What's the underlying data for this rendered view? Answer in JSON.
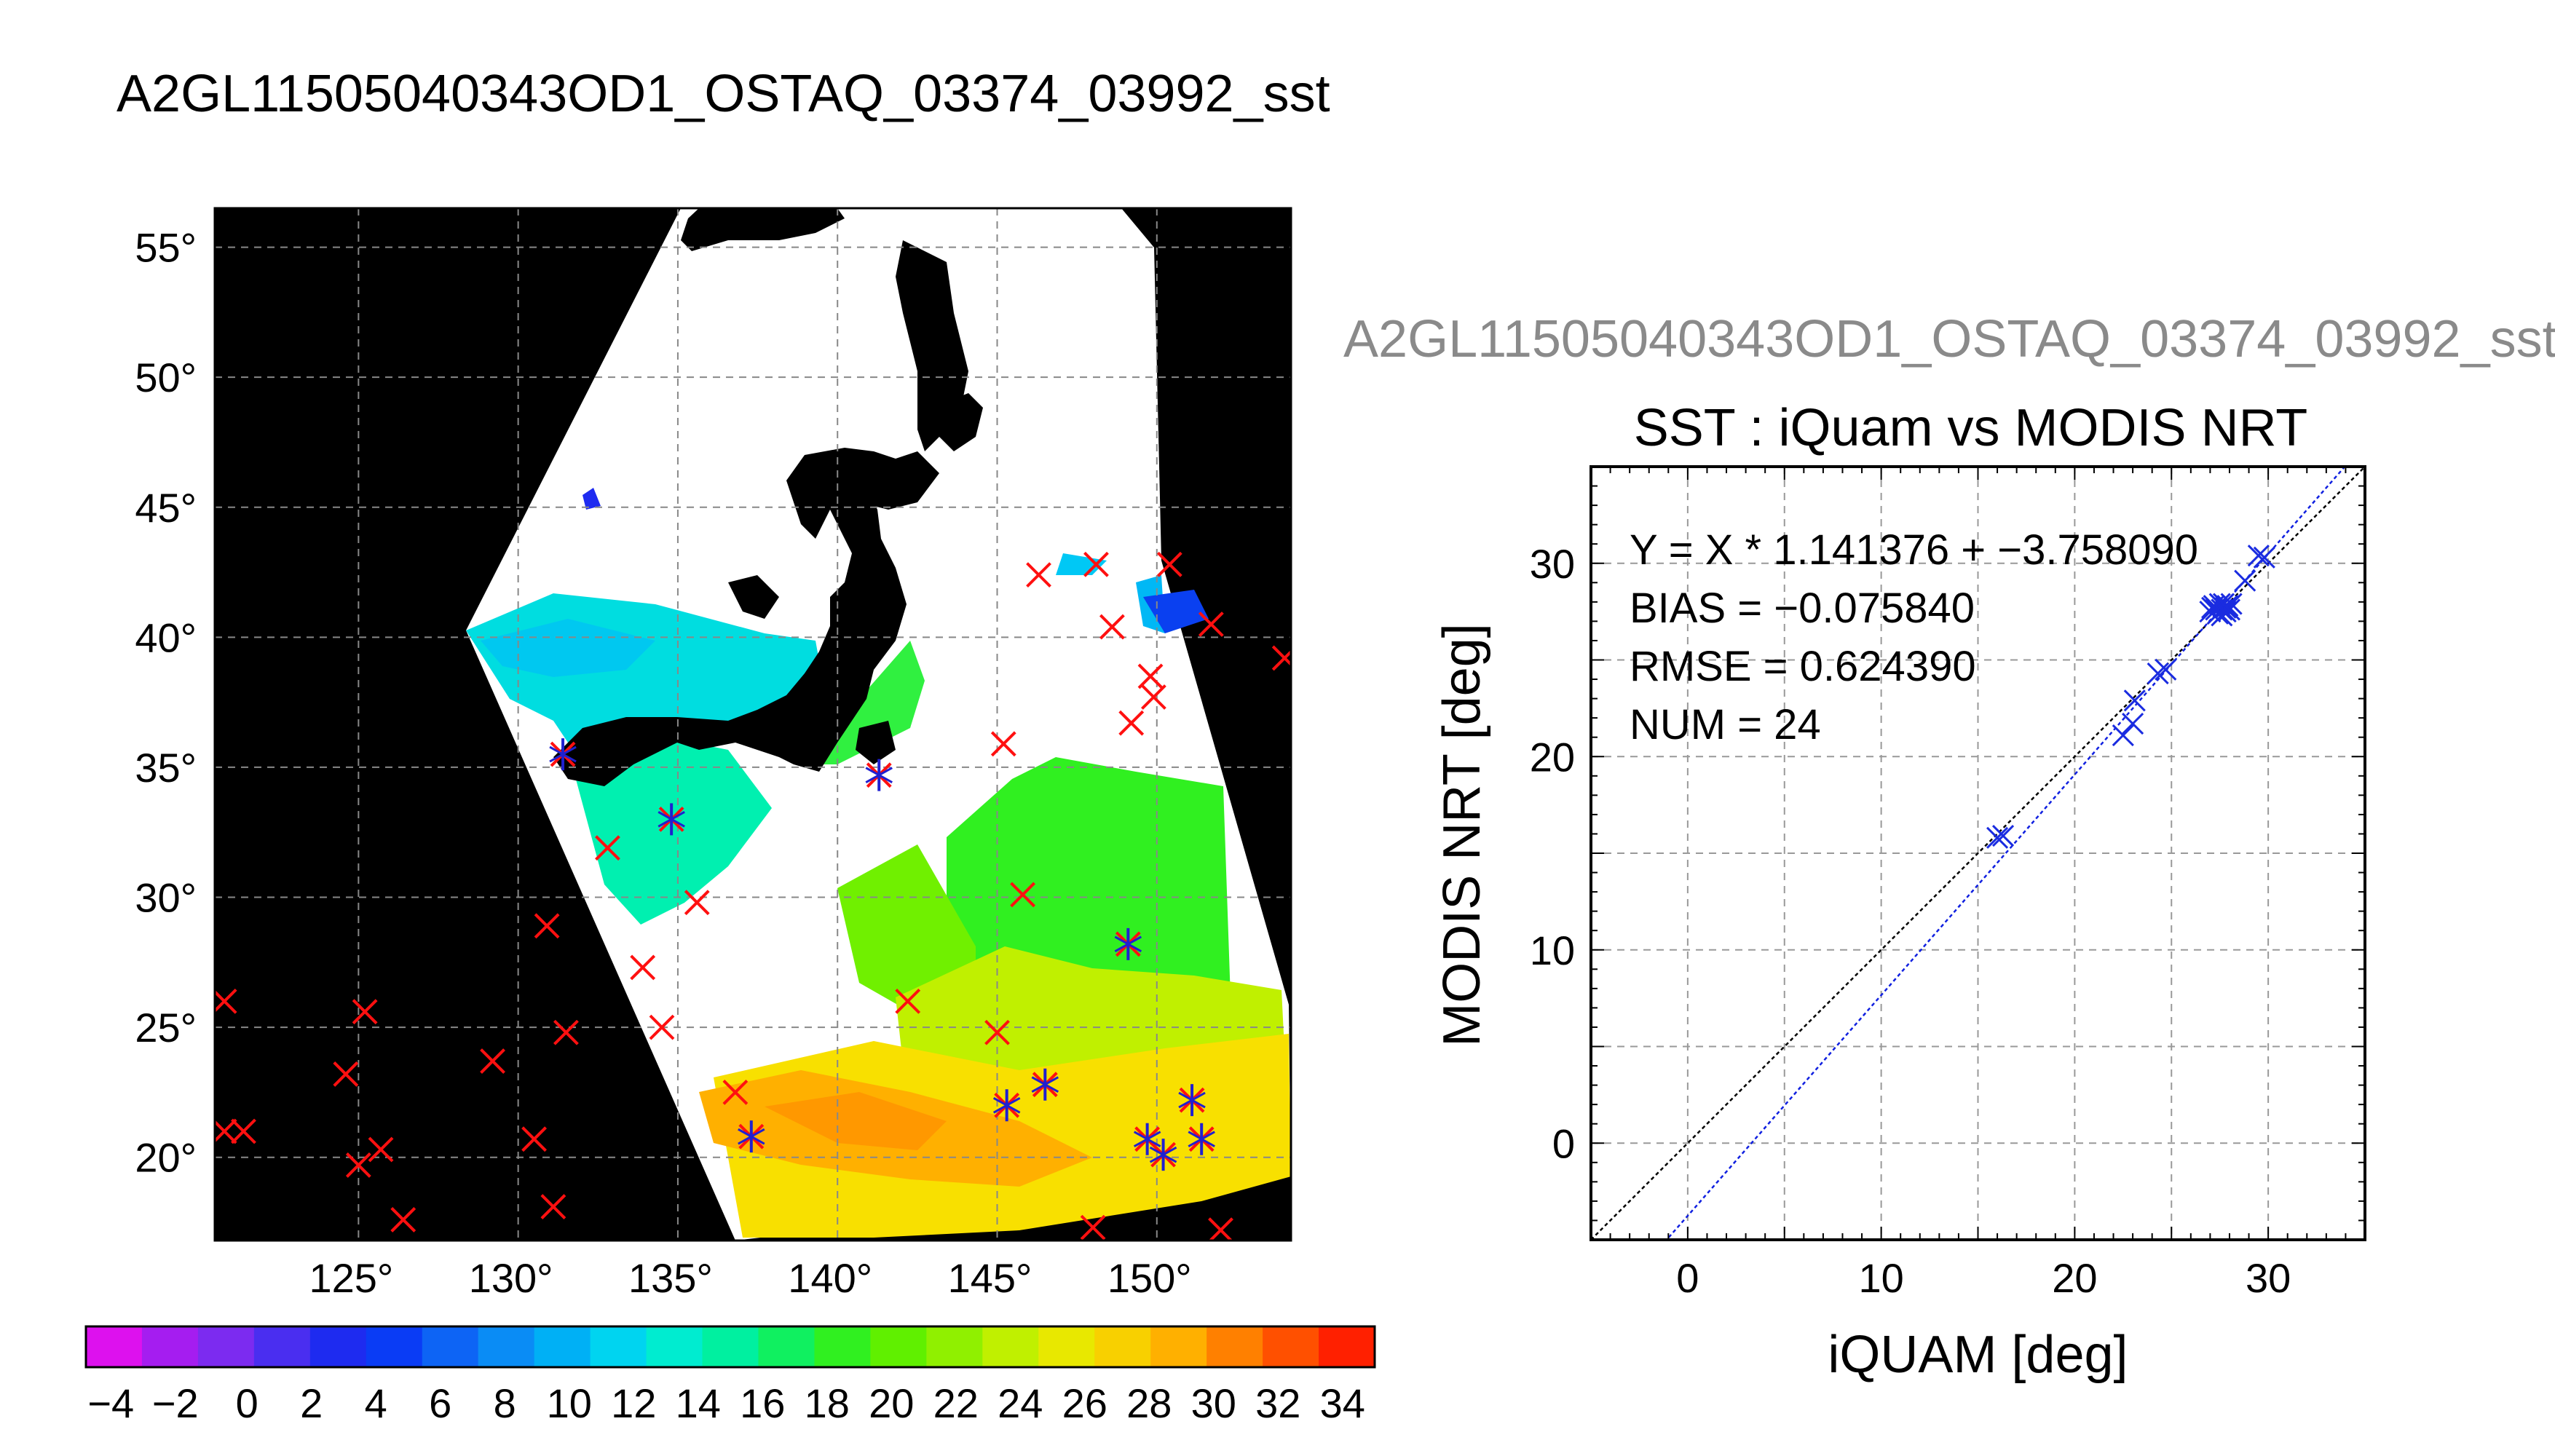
{
  "header": {
    "title": "A2GL11505040343OD1_OSTAQ_03374_03992_sst",
    "subtitle": "A2GL11505040343OD1_OSTAQ_03374_03992_sst"
  },
  "chart_data": [
    {
      "type": "map",
      "title": "",
      "lon_range": [
        120.5,
        154.2
      ],
      "lat_range": [
        16.8,
        56.5
      ],
      "lon_ticks": [
        "125°",
        "130°",
        "135°",
        "140°",
        "145°",
        "150°"
      ],
      "lon_tick_values": [
        125,
        130,
        135,
        140,
        145,
        150
      ],
      "lat_ticks": [
        "55°",
        "50°",
        "45°",
        "40°",
        "35°",
        "30°",
        "25°",
        "20°"
      ],
      "lat_tick_values": [
        55,
        50,
        45,
        40,
        35,
        30,
        25,
        20
      ],
      "grid": true,
      "markers_red": [
        [
          120.8,
          26
        ],
        [
          125.2,
          25.6
        ],
        [
          124.6,
          23.2
        ],
        [
          120.8,
          21
        ],
        [
          121.4,
          21
        ],
        [
          125,
          19.7
        ],
        [
          125.7,
          20.3
        ],
        [
          126.4,
          17.6
        ],
        [
          129.2,
          23.7
        ],
        [
          130.5,
          20.7
        ],
        [
          131.1,
          18.1
        ],
        [
          131.5,
          24.8
        ],
        [
          130.9,
          28.9
        ],
        [
          132.8,
          31.9
        ],
        [
          134.5,
          25
        ],
        [
          133.9,
          27.3
        ],
        [
          135.6,
          29.8
        ],
        [
          134.8,
          33
        ],
        [
          131.4,
          35.5
        ],
        [
          136.8,
          22.5
        ],
        [
          137.3,
          20.8
        ],
        [
          142.2,
          26
        ],
        [
          141.3,
          34.7
        ],
        [
          145.2,
          35.9
        ],
        [
          145.8,
          30.1
        ],
        [
          146.5,
          22.8
        ],
        [
          145,
          24.8
        ],
        [
          145.3,
          22
        ],
        [
          146.3,
          42.4
        ],
        [
          148.1,
          42.8
        ],
        [
          148.6,
          40.4
        ],
        [
          149.2,
          36.7
        ],
        [
          149.8,
          38.5
        ],
        [
          149.9,
          37.7
        ],
        [
          150.4,
          42.8
        ],
        [
          151.7,
          40.5
        ],
        [
          154,
          39.2
        ],
        [
          149.1,
          28.2
        ],
        [
          151.1,
          22.2
        ],
        [
          151.4,
          20.7
        ],
        [
          149.7,
          20.7
        ],
        [
          150.2,
          20.1
        ],
        [
          148,
          17.3
        ],
        [
          152,
          17.2
        ]
      ],
      "markers_blue": [
        [
          131.4,
          35.5
        ],
        [
          134.8,
          33
        ],
        [
          137.3,
          20.8
        ],
        [
          141.3,
          34.7
        ],
        [
          146.5,
          22.8
        ],
        [
          145.3,
          22
        ],
        [
          149.1,
          28.2
        ],
        [
          149.7,
          20.7
        ],
        [
          150.2,
          20.1
        ],
        [
          151.1,
          22.2
        ],
        [
          151.4,
          20.7
        ]
      ],
      "colorbar": {
        "ticks": [
          "−4",
          "−2",
          "0",
          "2",
          "4",
          "6",
          "8",
          "10",
          "12",
          "14",
          "16",
          "18",
          "20",
          "22",
          "24",
          "26",
          "28",
          "30",
          "32",
          "34"
        ],
        "range": [
          -5,
          35
        ],
        "colors": [
          "#dd11ee",
          "#a51df0",
          "#7c2bf0",
          "#4a2ef0",
          "#1e2bf0",
          "#0a3cf5",
          "#0d64f5",
          "#0a8cf5",
          "#00b0f5",
          "#00d4f0",
          "#00ecd0",
          "#00f0a0",
          "#10f060",
          "#30f020",
          "#60f000",
          "#90f000",
          "#c0f000",
          "#e8e800",
          "#f8d000",
          "#ffb000",
          "#ff8000",
          "#ff5000",
          "#ff2000"
        ]
      }
    },
    {
      "type": "scatter",
      "title": "SST : iQuam vs MODIS NRT",
      "xlabel": "iQUAM [deg]",
      "ylabel": "MODIS NRT [deg]",
      "xlim": [
        -5,
        35
      ],
      "ylim": [
        -5,
        35
      ],
      "xticks": [
        "0",
        "10",
        "20",
        "30"
      ],
      "xtick_values": [
        0,
        10,
        20,
        30
      ],
      "yticks": [
        "0",
        "10",
        "20",
        "30"
      ],
      "ytick_values": [
        0,
        10,
        20,
        30
      ],
      "grid": true,
      "stats": [
        "Y = X * 1.141376 + −3.758090",
        "BIAS = −0.075840",
        "RMSE = 0.624390",
        "NUM = 24"
      ],
      "fit": {
        "slope": 1.141376,
        "intercept": -3.75809
      },
      "points": [
        [
          16.0,
          15.8
        ],
        [
          16.3,
          15.9
        ],
        [
          22.5,
          21.1
        ],
        [
          23.0,
          21.7
        ],
        [
          23.1,
          22.9
        ],
        [
          24.3,
          24.3
        ],
        [
          24.7,
          24.5
        ],
        [
          27.0,
          27.5
        ],
        [
          27.2,
          27.8
        ],
        [
          27.4,
          27.4
        ],
        [
          27.5,
          27.9
        ],
        [
          27.6,
          27.6
        ],
        [
          27.8,
          27.5
        ],
        [
          27.9,
          27.8
        ],
        [
          27.3,
          27.6
        ],
        [
          27.6,
          27.3
        ],
        [
          27.8,
          27.7
        ],
        [
          28.1,
          27.9
        ],
        [
          28.8,
          29.1
        ],
        [
          29.5,
          30.4
        ],
        [
          29.8,
          30.3
        ],
        [
          27.1,
          27.7
        ],
        [
          28.0,
          27.6
        ],
        [
          27.7,
          27.9
        ]
      ]
    }
  ]
}
